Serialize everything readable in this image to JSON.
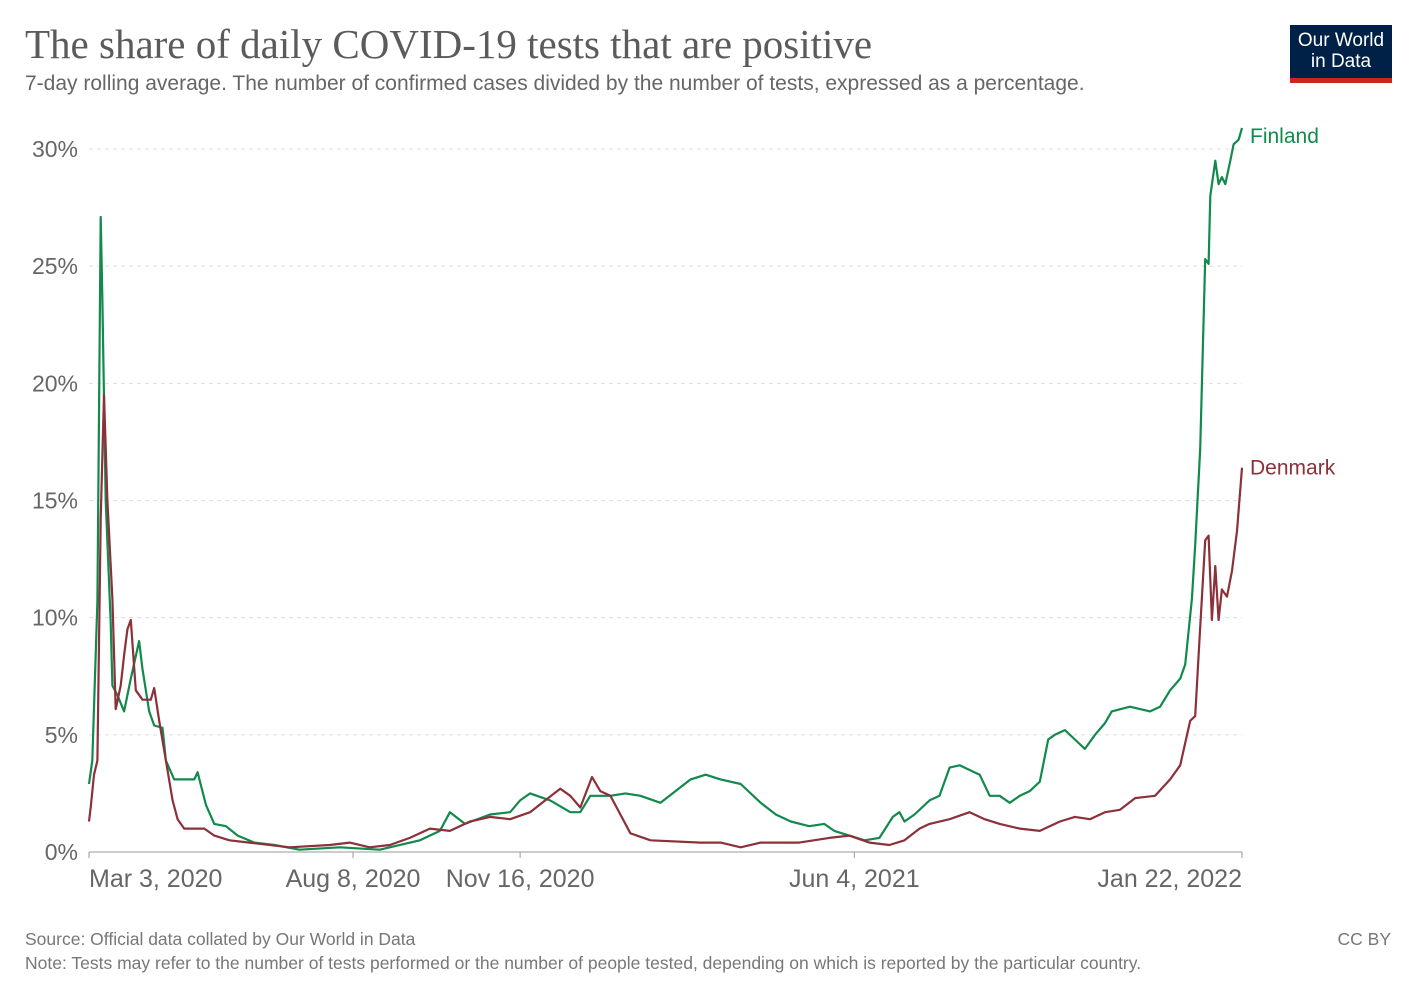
{
  "header": {
    "title": "The share of daily COVID-19 tests that are positive",
    "subtitle": "7-day rolling average. The number of confirmed cases divided by the number of tests, expressed as a percentage.",
    "logo": {
      "line1": "Our World",
      "line2": "in Data",
      "bg_color": "#002147",
      "accent_color": "#ce261e"
    }
  },
  "footer": {
    "source": "Source: Official data collated by Our World in Data",
    "license": "CC BY",
    "note": "Note: Tests may refer to the number of tests performed or the number of people tested, depending on which is reported by the particular country."
  },
  "chart_data": {
    "type": "line",
    "title": "The share of daily COVID-19 tests that are positive",
    "xlim": [
      "2020-03-03",
      "2022-01-22"
    ],
    "ylim": [
      0,
      30
    ],
    "x_ticks": [
      {
        "date": "2020-03-03",
        "label": "Mar 3, 2020"
      },
      {
        "date": "2020-08-08",
        "label": "Aug 8, 2020"
      },
      {
        "date": "2020-11-16",
        "label": "Nov 16, 2020"
      },
      {
        "date": "2021-06-04",
        "label": "Jun 4, 2021"
      },
      {
        "date": "2022-01-22",
        "label": "Jan 22, 2022"
      }
    ],
    "y_ticks": [
      {
        "value": 0,
        "label": "0%"
      },
      {
        "value": 5,
        "label": "5%"
      },
      {
        "value": 10,
        "label": "10%"
      },
      {
        "value": 15,
        "label": "15%"
      },
      {
        "value": 20,
        "label": "20%"
      },
      {
        "value": 25,
        "label": "25%"
      },
      {
        "value": 30,
        "label": "30%"
      }
    ],
    "grid": "horizontal dashed",
    "legend": "line-end labels",
    "series": [
      {
        "name": "Finland",
        "color": "#118a4c",
        "points": [
          [
            "2020-03-03",
            2.9
          ],
          [
            "2020-03-05",
            3.9
          ],
          [
            "2020-03-08",
            10.7
          ],
          [
            "2020-03-10",
            27.1
          ],
          [
            "2020-03-11",
            23.5
          ],
          [
            "2020-03-13",
            15.0
          ],
          [
            "2020-03-16",
            9.8
          ],
          [
            "2020-03-17",
            7.1
          ],
          [
            "2020-03-20",
            6.7
          ],
          [
            "2020-03-24",
            6.0
          ],
          [
            "2020-03-28",
            7.4
          ],
          [
            "2020-04-02",
            9.0
          ],
          [
            "2020-04-04",
            7.8
          ],
          [
            "2020-04-08",
            6.0
          ],
          [
            "2020-04-11",
            5.4
          ],
          [
            "2020-04-16",
            5.3
          ],
          [
            "2020-04-18",
            3.9
          ],
          [
            "2020-04-23",
            3.1
          ],
          [
            "2020-04-30",
            3.1
          ],
          [
            "2020-05-05",
            3.1
          ],
          [
            "2020-05-07",
            3.4
          ],
          [
            "2020-05-12",
            2.0
          ],
          [
            "2020-05-17",
            1.2
          ],
          [
            "2020-05-24",
            1.1
          ],
          [
            "2020-05-31",
            0.7
          ],
          [
            "2020-06-10",
            0.4
          ],
          [
            "2020-06-22",
            0.3
          ],
          [
            "2020-07-07",
            0.1
          ],
          [
            "2020-07-31",
            0.2
          ],
          [
            "2020-08-24",
            0.1
          ],
          [
            "2020-09-17",
            0.5
          ],
          [
            "2020-09-29",
            0.9
          ],
          [
            "2020-10-05",
            1.7
          ],
          [
            "2020-10-14",
            1.2
          ],
          [
            "2020-10-29",
            1.6
          ],
          [
            "2020-11-10",
            1.7
          ],
          [
            "2020-11-16",
            2.2
          ],
          [
            "2020-11-22",
            2.5
          ],
          [
            "2020-12-04",
            2.2
          ],
          [
            "2020-12-16",
            1.7
          ],
          [
            "2020-12-22",
            1.7
          ],
          [
            "2020-12-28",
            2.4
          ],
          [
            "2021-01-09",
            2.4
          ],
          [
            "2021-01-18",
            2.5
          ],
          [
            "2021-01-27",
            2.4
          ],
          [
            "2021-02-08",
            2.1
          ],
          [
            "2021-02-17",
            2.6
          ],
          [
            "2021-02-26",
            3.1
          ],
          [
            "2021-03-07",
            3.3
          ],
          [
            "2021-03-16",
            3.1
          ],
          [
            "2021-03-28",
            2.9
          ],
          [
            "2021-04-09",
            2.1
          ],
          [
            "2021-04-18",
            1.6
          ],
          [
            "2021-04-27",
            1.3
          ],
          [
            "2021-05-08",
            1.1
          ],
          [
            "2021-05-17",
            1.2
          ],
          [
            "2021-05-23",
            0.9
          ],
          [
            "2021-06-01",
            0.7
          ],
          [
            "2021-06-10",
            0.5
          ],
          [
            "2021-06-19",
            0.6
          ],
          [
            "2021-06-27",
            1.5
          ],
          [
            "2021-07-01",
            1.7
          ],
          [
            "2021-07-04",
            1.3
          ],
          [
            "2021-07-10",
            1.6
          ],
          [
            "2021-07-19",
            2.2
          ],
          [
            "2021-07-25",
            2.4
          ],
          [
            "2021-07-31",
            3.6
          ],
          [
            "2021-08-06",
            3.7
          ],
          [
            "2021-08-12",
            3.5
          ],
          [
            "2021-08-18",
            3.3
          ],
          [
            "2021-08-24",
            2.4
          ],
          [
            "2021-08-30",
            2.4
          ],
          [
            "2021-09-05",
            2.1
          ],
          [
            "2021-09-11",
            2.4
          ],
          [
            "2021-09-17",
            2.6
          ],
          [
            "2021-09-23",
            3.0
          ],
          [
            "2021-09-28",
            4.8
          ],
          [
            "2021-10-02",
            5.0
          ],
          [
            "2021-10-08",
            5.2
          ],
          [
            "2021-10-14",
            4.8
          ],
          [
            "2021-10-20",
            4.4
          ],
          [
            "2021-10-26",
            5.0
          ],
          [
            "2021-11-01",
            5.5
          ],
          [
            "2021-11-05",
            6.0
          ],
          [
            "2021-11-16",
            6.2
          ],
          [
            "2021-11-28",
            6.0
          ],
          [
            "2021-12-04",
            6.2
          ],
          [
            "2021-12-10",
            6.9
          ],
          [
            "2021-12-16",
            7.4
          ],
          [
            "2021-12-19",
            8.0
          ],
          [
            "2021-12-23",
            10.8
          ],
          [
            "2021-12-25",
            13.1
          ],
          [
            "2021-12-28",
            17.2
          ],
          [
            "2021-12-31",
            25.3
          ],
          [
            "2022-01-02",
            25.1
          ],
          [
            "2022-01-03",
            28.0
          ],
          [
            "2022-01-06",
            29.5
          ],
          [
            "2022-01-08",
            28.5
          ],
          [
            "2022-01-10",
            28.8
          ],
          [
            "2022-01-12",
            28.5
          ],
          [
            "2022-01-15",
            29.5
          ],
          [
            "2022-01-17",
            30.2
          ],
          [
            "2022-01-20",
            30.4
          ],
          [
            "2022-01-22",
            30.9
          ]
        ]
      },
      {
        "name": "Denmark",
        "color": "#8c3039",
        "points": [
          [
            "2020-03-03",
            1.3
          ],
          [
            "2020-03-04",
            1.9
          ],
          [
            "2020-03-06",
            3.3
          ],
          [
            "2020-03-08",
            3.9
          ],
          [
            "2020-03-10",
            14.2
          ],
          [
            "2020-03-12",
            19.5
          ],
          [
            "2020-03-14",
            15.0
          ],
          [
            "2020-03-17",
            10.8
          ],
          [
            "2020-03-19",
            6.1
          ],
          [
            "2020-03-22",
            7.1
          ],
          [
            "2020-03-24",
            8.4
          ],
          [
            "2020-03-26",
            9.5
          ],
          [
            "2020-03-28",
            9.9
          ],
          [
            "2020-03-31",
            6.9
          ],
          [
            "2020-04-04",
            6.5
          ],
          [
            "2020-04-09",
            6.5
          ],
          [
            "2020-04-11",
            7.0
          ],
          [
            "2020-04-14",
            5.6
          ],
          [
            "2020-04-18",
            3.9
          ],
          [
            "2020-04-22",
            2.2
          ],
          [
            "2020-04-25",
            1.4
          ],
          [
            "2020-04-29",
            1.0
          ],
          [
            "2020-05-11",
            1.0
          ],
          [
            "2020-05-17",
            0.7
          ],
          [
            "2020-05-26",
            0.5
          ],
          [
            "2020-06-07",
            0.4
          ],
          [
            "2020-07-01",
            0.2
          ],
          [
            "2020-07-25",
            0.3
          ],
          [
            "2020-08-06",
            0.4
          ],
          [
            "2020-08-18",
            0.2
          ],
          [
            "2020-08-30",
            0.3
          ],
          [
            "2020-09-11",
            0.6
          ],
          [
            "2020-09-23",
            1.0
          ],
          [
            "2020-10-05",
            0.9
          ],
          [
            "2020-10-17",
            1.3
          ],
          [
            "2020-10-29",
            1.5
          ],
          [
            "2020-11-10",
            1.4
          ],
          [
            "2020-11-22",
            1.7
          ],
          [
            "2020-12-01",
            2.2
          ],
          [
            "2020-12-10",
            2.7
          ],
          [
            "2020-12-16",
            2.4
          ],
          [
            "2020-12-22",
            1.9
          ],
          [
            "2020-12-29",
            3.2
          ],
          [
            "2021-01-03",
            2.6
          ],
          [
            "2021-01-09",
            2.4
          ],
          [
            "2021-01-15",
            1.6
          ],
          [
            "2021-01-21",
            0.8
          ],
          [
            "2021-02-02",
            0.5
          ],
          [
            "2021-03-04",
            0.4
          ],
          [
            "2021-03-16",
            0.4
          ],
          [
            "2021-03-28",
            0.2
          ],
          [
            "2021-04-09",
            0.4
          ],
          [
            "2021-05-02",
            0.4
          ],
          [
            "2021-05-20",
            0.6
          ],
          [
            "2021-06-01",
            0.7
          ],
          [
            "2021-06-13",
            0.4
          ],
          [
            "2021-06-25",
            0.3
          ],
          [
            "2021-07-04",
            0.5
          ],
          [
            "2021-07-13",
            1.0
          ],
          [
            "2021-07-19",
            1.2
          ],
          [
            "2021-07-31",
            1.4
          ],
          [
            "2021-08-12",
            1.7
          ],
          [
            "2021-08-21",
            1.4
          ],
          [
            "2021-08-30",
            1.2
          ],
          [
            "2021-09-11",
            1.0
          ],
          [
            "2021-09-23",
            0.9
          ],
          [
            "2021-10-05",
            1.3
          ],
          [
            "2021-10-14",
            1.5
          ],
          [
            "2021-10-23",
            1.4
          ],
          [
            "2021-11-01",
            1.7
          ],
          [
            "2021-11-10",
            1.8
          ],
          [
            "2021-11-19",
            2.3
          ],
          [
            "2021-12-01",
            2.4
          ],
          [
            "2021-12-10",
            3.1
          ],
          [
            "2021-12-16",
            3.7
          ],
          [
            "2021-12-22",
            5.6
          ],
          [
            "2021-12-25",
            5.8
          ],
          [
            "2021-12-27",
            8.4
          ],
          [
            "2021-12-31",
            13.3
          ],
          [
            "2022-01-02",
            13.5
          ],
          [
            "2022-01-04",
            9.9
          ],
          [
            "2022-01-06",
            12.2
          ],
          [
            "2022-01-08",
            9.9
          ],
          [
            "2022-01-10",
            11.2
          ],
          [
            "2022-01-13",
            10.9
          ],
          [
            "2022-01-16",
            12.0
          ],
          [
            "2022-01-19",
            13.7
          ],
          [
            "2022-01-22",
            16.4
          ]
        ]
      }
    ]
  }
}
